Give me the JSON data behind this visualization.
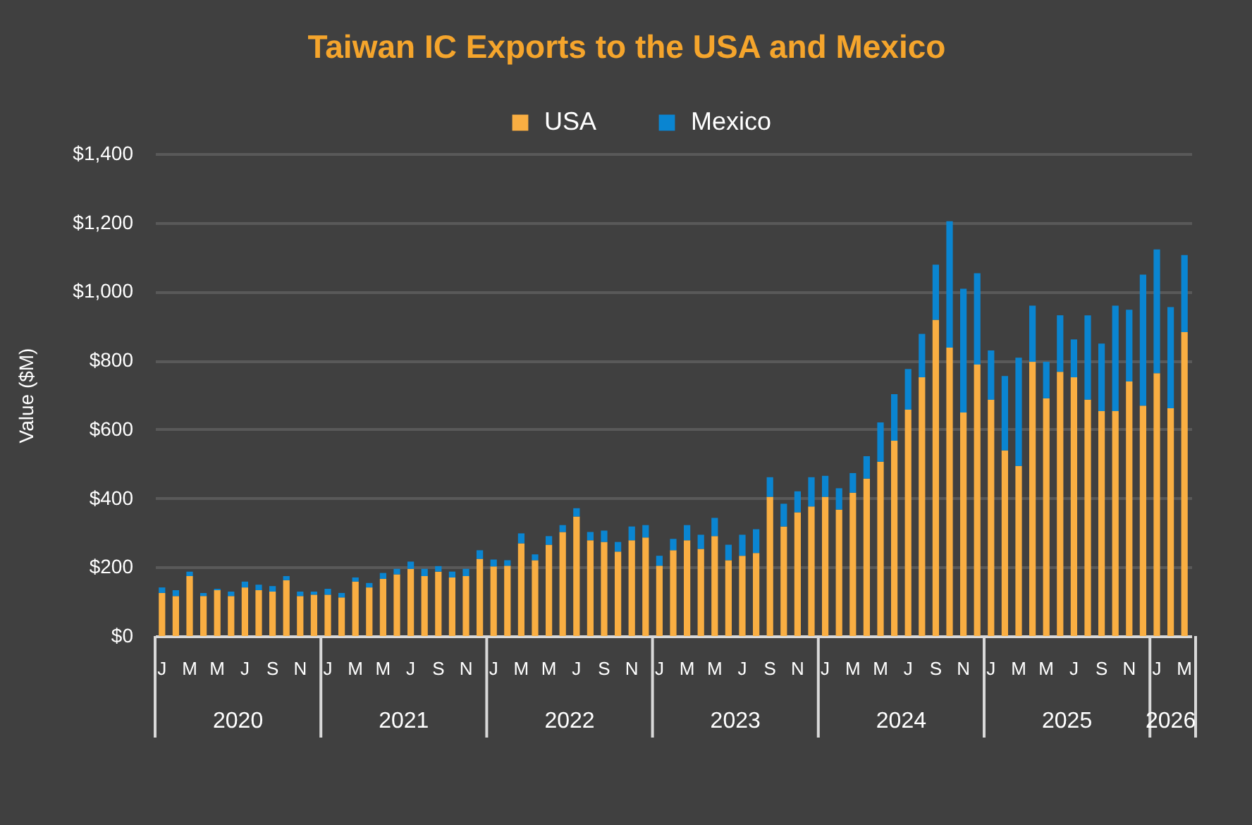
{
  "chart_data": {
    "type": "bar",
    "title": "Taiwan IC Exports to the USA and Mexico",
    "ylabel": "Value ($M)",
    "stacked": true,
    "grid": "y",
    "legend": "top",
    "categories": [
      "J",
      null,
      "M",
      null,
      "M",
      null,
      "J",
      null,
      "S",
      null,
      "N",
      null,
      "J",
      null,
      "M",
      null,
      "M",
      null,
      "J",
      null,
      "S",
      null,
      "N",
      null,
      "J",
      null,
      "M",
      null,
      "M",
      null,
      "J",
      null,
      "S",
      null,
      "N",
      null,
      "J",
      null,
      "M",
      null,
      "M",
      null,
      "J",
      null,
      "S",
      null,
      "N",
      null,
      "J",
      null,
      "M",
      null,
      "M",
      null,
      "J",
      null,
      "S",
      null,
      "N",
      null,
      "J",
      null,
      "M",
      null,
      "M",
      null,
      "J",
      null,
      "S",
      null,
      "N",
      null,
      "J",
      null,
      "M"
    ],
    "ylim": [
      0,
      1400
    ],
    "yticks": [
      {
        "value": 0,
        "label": "$0"
      },
      {
        "value": 200,
        "label": "$200"
      },
      {
        "value": 400,
        "label": "$400"
      },
      {
        "value": 600,
        "label": "$600"
      },
      {
        "value": 800,
        "label": "$800"
      },
      {
        "value": 1000,
        "label": "$1,000"
      },
      {
        "value": 1200,
        "label": "$1,200"
      },
      {
        "value": 1400,
        "label": "$1,400"
      }
    ],
    "series": [
      {
        "name": "USA",
        "color": "#f9ae42",
        "values": [
          125,
          116,
          174,
          116,
          133,
          116,
          141,
          133,
          129,
          162,
          116,
          120,
          120,
          112,
          158,
          141,
          166,
          179,
          195,
          174,
          187,
          170,
          174,
          224,
          202,
          204,
          269,
          220,
          265,
          302,
          347,
          278,
          273,
          245,
          278,
          286,
          204,
          249,
          278,
          253,
          290,
          220,
          233,
          241,
          404,
          318,
          359,
          376,
          404,
          367,
          416,
          457,
          506,
          567,
          657,
          751,
          918,
          837,
          649,
          788,
          686,
          539,
          494,
          796,
          690,
          767,
          751,
          686,
          653,
          653,
          739,
          669,
          763,
          661,
          882
        ]
      },
      {
        "name": "Mexico",
        "color": "#0a85d1",
        "values": [
          16,
          17,
          13,
          9,
          4,
          13,
          17,
          16,
          16,
          12,
          13,
          9,
          17,
          13,
          12,
          13,
          17,
          16,
          21,
          21,
          16,
          17,
          21,
          25,
          20,
          16,
          29,
          17,
          25,
          20,
          24,
          24,
          33,
          28,
          40,
          36,
          29,
          33,
          44,
          41,
          53,
          45,
          61,
          69,
          57,
          66,
          61,
          85,
          61,
          62,
          57,
          65,
          114,
          135,
          118,
          126,
          160,
          367,
          359,
          265,
          143,
          216,
          314,
          163,
          106,
          164,
          110,
          245,
          196,
          306,
          208,
          380,
          359,
          294,
          224
        ]
      }
    ],
    "annotations": [
      "2020",
      "2021",
      "2022",
      "2023",
      "2024",
      "2025",
      "2026"
    ]
  }
}
